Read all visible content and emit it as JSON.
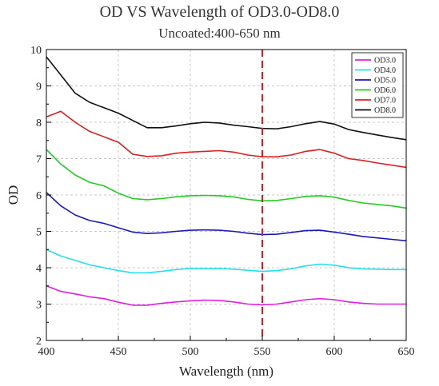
{
  "chart_data": {
    "type": "line",
    "title": "OD VS Wavelength of OD3.0-OD8.0",
    "subtitle": "Uncoated:400-650 nm",
    "xlabel": "Wavelength (nm)",
    "ylabel": "OD",
    "xlim": [
      400,
      650
    ],
    "ylim": [
      2,
      10
    ],
    "x_ticks": [
      "400",
      "450",
      "500",
      "550",
      "600",
      "650"
    ],
    "y_ticks": [
      "2",
      "3",
      "4",
      "5",
      "6",
      "7",
      "8",
      "9",
      "10"
    ],
    "grid": true,
    "legend_position": "top-right",
    "reference_line": {
      "x": 550,
      "color": "#c0272d",
      "style": "dashed"
    },
    "x": [
      400,
      410,
      420,
      430,
      440,
      450,
      460,
      470,
      480,
      490,
      500,
      510,
      520,
      530,
      540,
      550,
      560,
      570,
      580,
      590,
      600,
      610,
      620,
      630,
      640,
      650
    ],
    "series": [
      {
        "name": "OD3.0",
        "color": "#e020e0",
        "values": [
          3.5,
          3.35,
          3.28,
          3.2,
          3.15,
          3.05,
          2.97,
          2.97,
          3.02,
          3.06,
          3.09,
          3.11,
          3.1,
          3.06,
          3.0,
          2.98,
          3.0,
          3.06,
          3.12,
          3.15,
          3.12,
          3.06,
          3.02,
          3.0,
          3.0,
          3.0
        ]
      },
      {
        "name": "OD4.0",
        "color": "#20e0f0",
        "values": [
          4.5,
          4.32,
          4.2,
          4.08,
          4.0,
          3.92,
          3.86,
          3.86,
          3.9,
          3.95,
          3.98,
          3.98,
          3.98,
          3.96,
          3.93,
          3.9,
          3.92,
          3.97,
          4.05,
          4.1,
          4.07,
          4.0,
          3.97,
          3.96,
          3.95,
          3.95
        ]
      },
      {
        "name": "OD5.0",
        "color": "#1a1ab8",
        "values": [
          6.07,
          5.7,
          5.45,
          5.3,
          5.22,
          5.1,
          4.98,
          4.94,
          4.96,
          5.0,
          5.03,
          5.04,
          5.03,
          5.0,
          4.95,
          4.91,
          4.92,
          4.97,
          5.02,
          5.03,
          4.98,
          4.92,
          4.86,
          4.82,
          4.78,
          4.74
        ]
      },
      {
        "name": "OD6.0",
        "color": "#22cc22",
        "values": [
          7.25,
          6.85,
          6.55,
          6.35,
          6.25,
          6.05,
          5.9,
          5.87,
          5.9,
          5.95,
          5.98,
          5.99,
          5.98,
          5.95,
          5.88,
          5.84,
          5.85,
          5.9,
          5.96,
          5.98,
          5.94,
          5.85,
          5.78,
          5.74,
          5.7,
          5.64
        ]
      },
      {
        "name": "OD7.0",
        "color": "#e02020",
        "values": [
          8.15,
          8.3,
          8.0,
          7.75,
          7.6,
          7.45,
          7.12,
          7.06,
          7.08,
          7.15,
          7.18,
          7.2,
          7.22,
          7.18,
          7.1,
          7.05,
          7.05,
          7.1,
          7.2,
          7.25,
          7.15,
          7.0,
          6.95,
          6.88,
          6.82,
          6.76
        ]
      },
      {
        "name": "OD8.0",
        "color": "#111111",
        "values": [
          9.8,
          9.3,
          8.8,
          8.55,
          8.4,
          8.25,
          8.05,
          7.85,
          7.85,
          7.9,
          7.96,
          8.0,
          7.98,
          7.92,
          7.88,
          7.83,
          7.82,
          7.88,
          7.96,
          8.02,
          7.95,
          7.8,
          7.72,
          7.65,
          7.58,
          7.52
        ]
      }
    ]
  }
}
